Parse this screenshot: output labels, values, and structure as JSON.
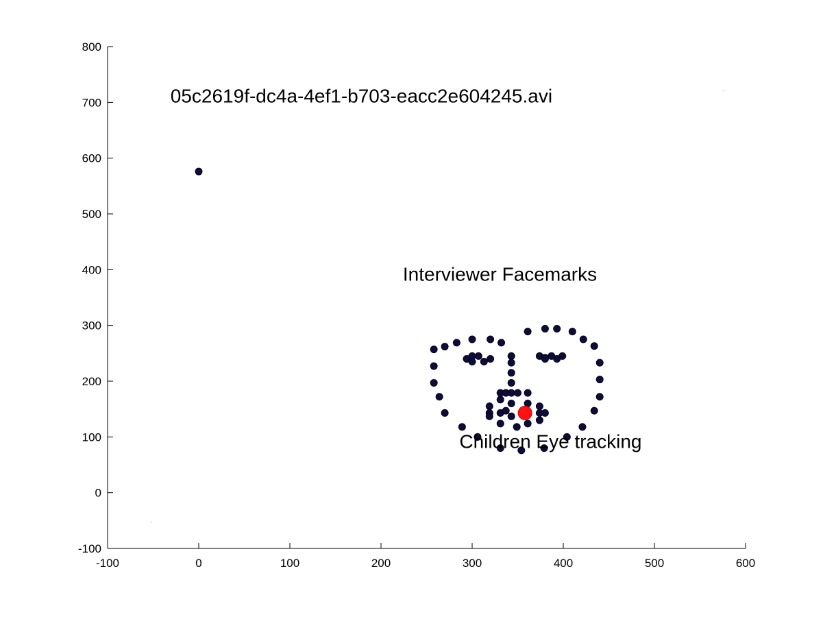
{
  "chart_data": {
    "type": "scatter",
    "xlim": [
      -100,
      600
    ],
    "ylim": [
      -100,
      800
    ],
    "xticks": [
      -100,
      0,
      100,
      200,
      300,
      400,
      500,
      600
    ],
    "yticks": [
      -100,
      0,
      100,
      200,
      300,
      400,
      500,
      600,
      700,
      800
    ],
    "tick_labels_x": [
      "-100",
      "0",
      "100",
      "200",
      "300",
      "400",
      "500",
      "600"
    ],
    "tick_labels_y": [
      "-100",
      "0",
      "100",
      "200",
      "300",
      "400",
      "500",
      "600",
      "700",
      "800"
    ],
    "grid": false,
    "annotations": [
      {
        "text": "05c2619f-dc4a-4ef1-b703-eacc2e604245.avi",
        "x": -31,
        "y": 700
      },
      {
        "text": "Interviewer Facemarks",
        "x": 224,
        "y": 380
      },
      {
        "text": "Children Eye tracking",
        "x": 286,
        "y": 80
      }
    ],
    "series": [
      {
        "marker": "dot",
        "color": "#0d0d36",
        "points": [
          [
            0,
            576
          ],
          [
            258,
            257
          ],
          [
            258,
            227
          ],
          [
            258,
            197
          ],
          [
            264,
            172
          ],
          [
            270,
            143
          ],
          [
            289,
            118
          ],
          [
            306,
            100
          ],
          [
            331,
            80
          ],
          [
            354,
            76
          ],
          [
            379,
            80
          ],
          [
            404,
            100
          ],
          [
            421,
            118
          ],
          [
            434,
            147
          ],
          [
            440,
            172
          ],
          [
            440,
            203
          ],
          [
            440,
            233
          ],
          [
            434,
            263
          ],
          [
            422,
            275
          ],
          [
            410,
            289
          ],
          [
            393,
            294
          ],
          [
            380,
            294
          ],
          [
            361,
            289
          ],
          [
            270,
            262
          ],
          [
            283,
            269
          ],
          [
            300,
            275
          ],
          [
            320,
            275
          ],
          [
            332,
            269
          ],
          [
            294,
            240
          ],
          [
            300,
            245
          ],
          [
            307,
            245
          ],
          [
            320,
            240
          ],
          [
            313,
            235
          ],
          [
            300,
            235
          ],
          [
            374,
            245
          ],
          [
            380,
            242
          ],
          [
            387,
            245
          ],
          [
            399,
            245
          ],
          [
            393,
            240
          ],
          [
            380,
            240
          ],
          [
            343,
            245
          ],
          [
            343,
            233
          ],
          [
            343,
            215
          ],
          [
            343,
            197
          ],
          [
            331,
            179
          ],
          [
            337,
            179
          ],
          [
            343,
            179
          ],
          [
            350,
            179
          ],
          [
            361,
            179
          ],
          [
            319,
            155
          ],
          [
            319,
            143
          ],
          [
            319,
            137
          ],
          [
            331,
            143
          ],
          [
            337,
            147
          ],
          [
            343,
            160
          ],
          [
            343,
            137
          ],
          [
            331,
            124
          ],
          [
            349,
            118
          ],
          [
            361,
            124
          ],
          [
            374,
            130
          ],
          [
            374,
            143
          ],
          [
            380,
            143
          ],
          [
            374,
            155
          ],
          [
            361,
            160
          ],
          [
            331,
            167
          ]
        ]
      },
      {
        "marker": "dot-large",
        "color": "#ff1111",
        "points": [
          [
            358,
            143
          ]
        ]
      }
    ]
  }
}
